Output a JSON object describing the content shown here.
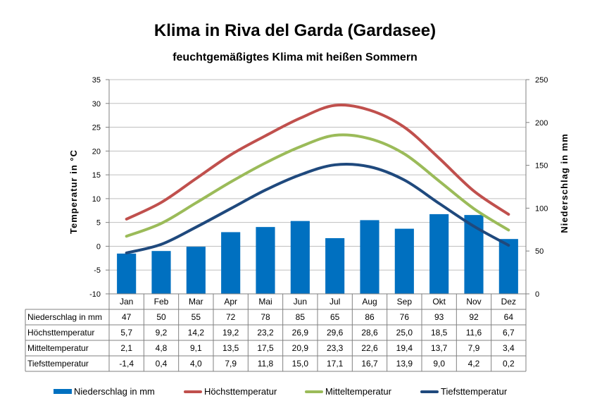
{
  "header": {
    "title": "Klima in Riva del Garda (Gardasee)",
    "subtitle": "feuchtgemäßigtes Klima mit heißen Sommern"
  },
  "colors": {
    "precip": "#0070c0",
    "max": "#c0504d",
    "mean": "#9bbb59",
    "min": "#1f497d",
    "grid": "#bfbfbf"
  },
  "chart_data": {
    "type": "bar",
    "categories": [
      "Jan",
      "Feb",
      "Mar",
      "Apr",
      "Mai",
      "Jun",
      "Jul",
      "Aug",
      "Sep",
      "Okt",
      "Nov",
      "Dez"
    ],
    "ylabel_left": "Temperatur in °C",
    "ylabel_right": "Niederschlag in mm",
    "ylim_left": [
      -10,
      35
    ],
    "ylim_right": [
      0,
      250
    ],
    "yticks_left": [
      "35",
      "30",
      "25",
      "20",
      "15",
      "10",
      "5",
      "0",
      "-5",
      "-10"
    ],
    "yticks_right": [
      "250",
      "200",
      "150",
      "100",
      "50",
      "0"
    ],
    "grid": true,
    "legend": "bottom",
    "series": [
      {
        "name": "Niederschlag in mm",
        "kind": "bar",
        "axis": "right",
        "color": "#0070c0",
        "values": [
          47,
          50,
          55,
          72,
          78,
          85,
          65,
          86,
          76,
          93,
          92,
          64
        ],
        "labels": [
          "47",
          "50",
          "55",
          "72",
          "78",
          "85",
          "65",
          "86",
          "76",
          "93",
          "92",
          "64"
        ]
      },
      {
        "name": "Höchsttemperatur",
        "kind": "line",
        "axis": "left",
        "color": "#c0504d",
        "values": [
          5.7,
          9.2,
          14.2,
          19.2,
          23.2,
          26.9,
          29.6,
          28.6,
          25.0,
          18.5,
          11.6,
          6.7
        ],
        "labels": [
          "5,7",
          "9,2",
          "14,2",
          "19,2",
          "23,2",
          "26,9",
          "29,6",
          "28,6",
          "25,0",
          "18,5",
          "11,6",
          "6,7"
        ]
      },
      {
        "name": "Mitteltemperatur",
        "kind": "line",
        "axis": "left",
        "color": "#9bbb59",
        "values": [
          2.1,
          4.8,
          9.1,
          13.5,
          17.5,
          20.9,
          23.3,
          22.6,
          19.4,
          13.7,
          7.9,
          3.4
        ],
        "labels": [
          "2,1",
          "4,8",
          "9,1",
          "13,5",
          "17,5",
          "20,9",
          "23,3",
          "22,6",
          "19,4",
          "13,7",
          "7,9",
          "3,4"
        ]
      },
      {
        "name": "Tiefsttemperatur",
        "kind": "line",
        "axis": "left",
        "color": "#1f497d",
        "values": [
          -1.4,
          0.4,
          4.0,
          7.9,
          11.8,
          15.0,
          17.1,
          16.7,
          13.9,
          9.0,
          4.2,
          0.2
        ],
        "labels": [
          "-1,4",
          "0,4",
          "4,0",
          "7,9",
          "11,8",
          "15,0",
          "17,1",
          "16,7",
          "13,9",
          "9,0",
          "4,2",
          "0,2"
        ]
      }
    ]
  }
}
